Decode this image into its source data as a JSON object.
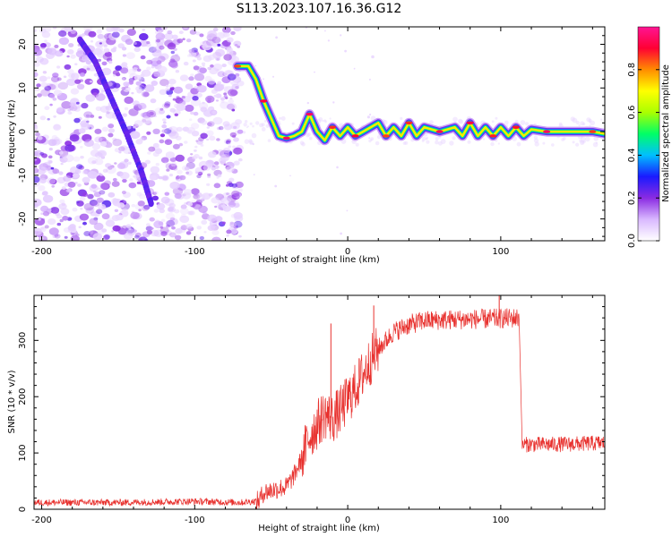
{
  "title": "S113.2023.107.16.36.G12",
  "chart_data": [
    {
      "type": "heatmap",
      "xlabel": "Height of straight line (km)",
      "ylabel": "Frequency (Hz)",
      "xlim": [
        -205,
        168
      ],
      "ylim": [
        -25,
        24
      ],
      "xticks": [
        -200,
        -100,
        0,
        100
      ],
      "yticks": [
        -20,
        -10,
        0,
        10,
        20
      ],
      "colorbar": {
        "label": "Normalized spectral amplitude",
        "range": [
          0,
          1
        ],
        "ticks": [
          0.0,
          0.2,
          0.4,
          0.6,
          0.8
        ],
        "colors": [
          "#ffffff",
          "#d9b8ff",
          "#8a2be2",
          "#1a1aff",
          "#00bfff",
          "#00ff66",
          "#aaff00",
          "#ffff00",
          "#ff8c00",
          "#ff0033",
          "#ff1493"
        ]
      },
      "noise_region_x": [
        -205,
        -70
      ],
      "streak_points": [
        {
          "x": -175,
          "y": 21
        },
        {
          "x": -165,
          "y": 16
        },
        {
          "x": -155,
          "y": 8
        },
        {
          "x": -145,
          "y": 0
        },
        {
          "x": -135,
          "y": -9
        },
        {
          "x": -128,
          "y": -17
        }
      ],
      "signal_trace": [
        {
          "x": -72,
          "y": 15
        },
        {
          "x": -65,
          "y": 15
        },
        {
          "x": -60,
          "y": 12
        },
        {
          "x": -55,
          "y": 7
        },
        {
          "x": -50,
          "y": 3
        },
        {
          "x": -45,
          "y": -1
        },
        {
          "x": -40,
          "y": -1.5
        },
        {
          "x": -35,
          "y": -1
        },
        {
          "x": -30,
          "y": 0
        },
        {
          "x": -25,
          "y": 4
        },
        {
          "x": -20,
          "y": 0
        },
        {
          "x": -15,
          "y": -2
        },
        {
          "x": -10,
          "y": 1
        },
        {
          "x": -5,
          "y": -1
        },
        {
          "x": 0,
          "y": 1
        },
        {
          "x": 5,
          "y": -1
        },
        {
          "x": 10,
          "y": 0
        },
        {
          "x": 20,
          "y": 2
        },
        {
          "x": 25,
          "y": -1
        },
        {
          "x": 30,
          "y": 1
        },
        {
          "x": 35,
          "y": -1
        },
        {
          "x": 40,
          "y": 2
        },
        {
          "x": 45,
          "y": -1
        },
        {
          "x": 50,
          "y": 1
        },
        {
          "x": 60,
          "y": 0
        },
        {
          "x": 70,
          "y": 1
        },
        {
          "x": 75,
          "y": -1
        },
        {
          "x": 80,
          "y": 2
        },
        {
          "x": 85,
          "y": -1
        },
        {
          "x": 90,
          "y": 1
        },
        {
          "x": 95,
          "y": -1
        },
        {
          "x": 100,
          "y": 1
        },
        {
          "x": 105,
          "y": -1
        },
        {
          "x": 110,
          "y": 1
        },
        {
          "x": 115,
          "y": -1
        },
        {
          "x": 120,
          "y": 0.5
        },
        {
          "x": 130,
          "y": 0
        },
        {
          "x": 140,
          "y": 0
        },
        {
          "x": 150,
          "y": 0
        },
        {
          "x": 160,
          "y": 0
        },
        {
          "x": 168,
          "y": -0.5
        }
      ]
    },
    {
      "type": "line",
      "xlabel": "Height of straight line (km)",
      "ylabel": "SNR (10 * v/v)",
      "xlim": [
        -205,
        168
      ],
      "ylim": [
        0,
        380
      ],
      "xticks": [
        -200,
        -100,
        0,
        100
      ],
      "yticks": [
        0,
        100,
        200,
        300
      ],
      "color": "#e8312e",
      "series": [
        {
          "envelope": [
            {
              "x": -205,
              "y": 12
            },
            {
              "x": -150,
              "y": 12
            },
            {
              "x": -100,
              "y": 14
            },
            {
              "x": -70,
              "y": 12
            },
            {
              "x": -58,
              "y": 15
            },
            {
              "x": -55,
              "y": 30
            },
            {
              "x": -48,
              "y": 35
            },
            {
              "x": -40,
              "y": 40
            },
            {
              "x": -35,
              "y": 60
            },
            {
              "x": -30,
              "y": 90
            },
            {
              "x": -25,
              "y": 130
            },
            {
              "x": -20,
              "y": 150
            },
            {
              "x": -15,
              "y": 170
            },
            {
              "x": -10,
              "y": 160
            },
            {
              "x": -5,
              "y": 175
            },
            {
              "x": 0,
              "y": 195
            },
            {
              "x": 5,
              "y": 215
            },
            {
              "x": 10,
              "y": 240
            },
            {
              "x": 15,
              "y": 265
            },
            {
              "x": 20,
              "y": 285
            },
            {
              "x": 25,
              "y": 300
            },
            {
              "x": 30,
              "y": 315
            },
            {
              "x": 40,
              "y": 328
            },
            {
              "x": 50,
              "y": 335
            },
            {
              "x": 70,
              "y": 337
            },
            {
              "x": 90,
              "y": 338
            },
            {
              "x": 112,
              "y": 340
            },
            {
              "x": 114,
              "y": 115
            },
            {
              "x": 130,
              "y": 115
            },
            {
              "x": 150,
              "y": 116
            },
            {
              "x": 168,
              "y": 118
            }
          ],
          "spikes": [
            {
              "x": -11,
              "y": 330
            },
            {
              "x": 17,
              "y": 362
            },
            {
              "x": 99,
              "y": 380
            }
          ]
        }
      ]
    }
  ]
}
